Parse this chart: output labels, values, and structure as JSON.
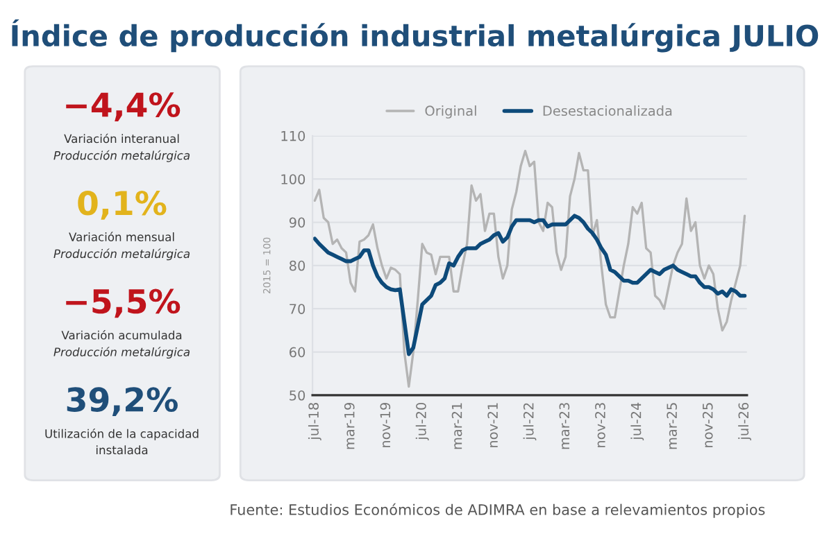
{
  "chart_data": {
    "type": "line",
    "title": "Índice de producción industrial metalúrgica JULIO",
    "ylabel": "2015 = 100",
    "categories": [
      "jul-18",
      null,
      null,
      null,
      null,
      null,
      null,
      null,
      "mar-19",
      null,
      null,
      null,
      null,
      null,
      null,
      null,
      "nov-19",
      null,
      null,
      null,
      null,
      null,
      null,
      null,
      "jul-20",
      null,
      null,
      null,
      null,
      null,
      null,
      null,
      "mar-21",
      null,
      null,
      null,
      null,
      null,
      null,
      null,
      "nov-21",
      null,
      null,
      null,
      null,
      null,
      null,
      null,
      "jul-22",
      null,
      null,
      null,
      null,
      null,
      null,
      null,
      "mar-23",
      null,
      null,
      null,
      null,
      null,
      null,
      null,
      "nov-23",
      null,
      null,
      null,
      null,
      null,
      null,
      null,
      "jul-24",
      null,
      null,
      null,
      null,
      null,
      null,
      null,
      "mar-25",
      null,
      null,
      null,
      null,
      null,
      null,
      null,
      "nov-25",
      null,
      null,
      null,
      null,
      null,
      null,
      null,
      "jul-26"
    ],
    "series": [
      {
        "name": "Original",
        "color": "#b4b4b4",
        "values": [
          95,
          97.5,
          91,
          90,
          85,
          86,
          84,
          83,
          76,
          74,
          85.5,
          86,
          87,
          89.5,
          84,
          80,
          77,
          79.5,
          79,
          78,
          60,
          52,
          60,
          72,
          85,
          83,
          82.5,
          78,
          82,
          82,
          82,
          74,
          74,
          80,
          85,
          98.5,
          95,
          96.5,
          88,
          92,
          92,
          82,
          77,
          80,
          93,
          97,
          103,
          106.5,
          103,
          104,
          90,
          88,
          94.5,
          93.5,
          83,
          79,
          82,
          96,
          100,
          106,
          102,
          102,
          87,
          90.5,
          80,
          71,
          68,
          68,
          74,
          80,
          85,
          93.5,
          92,
          94.5,
          84,
          83,
          73,
          72,
          70,
          75,
          80,
          83,
          85,
          95.5,
          88,
          90,
          80,
          77,
          80,
          78,
          70,
          65,
          67,
          72,
          76,
          80,
          91.5
        ]
      },
      {
        "name": "Desestacionalizada",
        "color": "#0d4a7a",
        "values": [
          86.2,
          85,
          84,
          83,
          82.5,
          82,
          81.5,
          81,
          81,
          81.5,
          82,
          83.5,
          83.5,
          80,
          77.5,
          76,
          75,
          74.5,
          74.3,
          74.5,
          67,
          59.5,
          61,
          66,
          71,
          72,
          73,
          75.5,
          76,
          77,
          80.5,
          80,
          82,
          83.5,
          84,
          84,
          84,
          85,
          85.5,
          86,
          87,
          87.5,
          85.5,
          86.5,
          89,
          90.5,
          90.5,
          90.5,
          90.5,
          90,
          90.5,
          90.5,
          89,
          89.5,
          89.5,
          89.5,
          89.5,
          90.5,
          91.5,
          91,
          90,
          88.5,
          87.5,
          86,
          84,
          82.5,
          79,
          78.5,
          77.5,
          76.5,
          76.5,
          76,
          76,
          77,
          78,
          79,
          78.5,
          78,
          79,
          79.5,
          80,
          79,
          78.5,
          78,
          77.5,
          77.5,
          76,
          75,
          75,
          74.5,
          73.5,
          74,
          73,
          74.5,
          74,
          73,
          73
        ]
      }
    ],
    "ylim": [
      50,
      110
    ],
    "yticks": [
      50,
      60,
      70,
      80,
      90,
      100,
      110
    ],
    "grid": "y",
    "legend": "top",
    "marker": "none",
    "line_style": "solid",
    "annotations": [
      "−4,4%",
      "Variación interanual",
      "Producción metalúrgica",
      "0,1%",
      "Variación mensual",
      "Producción metalúrgica",
      "−5,5%",
      "Variación acumulada",
      "Producción metalúrgica",
      "39,2%",
      "Utilización de la capacidad",
      "instalada",
      "Fuente: Estudios Económicos de ADIMRA en base a relevamientos propios"
    ]
  }
}
